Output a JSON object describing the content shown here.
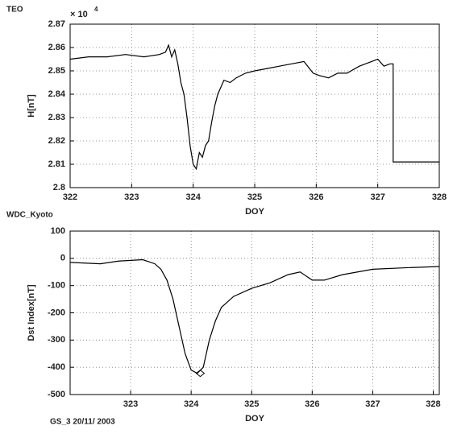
{
  "chart_data": [
    {
      "type": "line",
      "title": "TEO",
      "ylabel": "H[nT]",
      "xlabel": "DOY",
      "axis_multiplier": "× 10",
      "axis_exponent": "4",
      "xlim": [
        322,
        328
      ],
      "xticks": [
        322,
        323,
        324,
        325,
        326,
        327,
        328
      ],
      "ylim": [
        2.8,
        2.87
      ],
      "yticks": [
        2.8,
        2.81,
        2.82,
        2.83,
        2.84,
        2.85,
        2.86,
        2.87
      ],
      "grid": true,
      "color": "#000000",
      "x": [
        322,
        322.3,
        322.6,
        322.9,
        323.2,
        323.45,
        323.55,
        323.6,
        323.65,
        323.7,
        323.75,
        323.8,
        323.85,
        323.9,
        323.95,
        324.0,
        324.05,
        324.1,
        324.15,
        324.2,
        324.25,
        324.3,
        324.35,
        324.4,
        324.5,
        324.6,
        324.7,
        324.85,
        325.0,
        325.2,
        325.4,
        325.6,
        325.8,
        325.95,
        326.05,
        326.2,
        326.35,
        326.5,
        326.7,
        326.9,
        327.0,
        327.1,
        327.2,
        327.25,
        327.25,
        328
      ],
      "values": [
        2.855,
        2.856,
        2.856,
        2.857,
        2.856,
        2.857,
        2.858,
        2.861,
        2.856,
        2.859,
        2.853,
        2.845,
        2.84,
        2.83,
        2.818,
        2.81,
        2.808,
        2.815,
        2.813,
        2.818,
        2.82,
        2.828,
        2.835,
        2.84,
        2.846,
        2.845,
        2.847,
        2.849,
        2.85,
        2.851,
        2.852,
        2.853,
        2.854,
        2.849,
        2.848,
        2.847,
        2.849,
        2.849,
        2.852,
        2.854,
        2.855,
        2.852,
        2.853,
        2.853,
        2.811,
        2.811
      ]
    },
    {
      "type": "line",
      "title": "WDC_Kyoto",
      "ylabel": "Dst Index[nT]",
      "xlabel": "DOY",
      "footnote": "GS_3  20/11/ 2003",
      "xlim": [
        322,
        328.1
      ],
      "xticks": [
        323,
        324,
        325,
        326,
        327,
        328
      ],
      "ylim": [
        -500,
        100
      ],
      "yticks": [
        -500,
        -400,
        -300,
        -200,
        -100,
        0,
        100
      ],
      "grid": true,
      "color": "#000000",
      "x": [
        322,
        322.5,
        322.8,
        323.2,
        323.4,
        323.5,
        323.6,
        323.7,
        323.8,
        323.9,
        324.0,
        324.1,
        324.2,
        324.3,
        324.4,
        324.5,
        324.7,
        325.0,
        325.3,
        325.6,
        325.8,
        326.0,
        326.2,
        326.5,
        327.0,
        327.5,
        328.1
      ],
      "values": [
        -15,
        -20,
        -10,
        -5,
        -20,
        -40,
        -80,
        -150,
        -250,
        -350,
        -410,
        -422,
        -400,
        -300,
        -230,
        -180,
        -140,
        -110,
        -90,
        -60,
        -50,
        -80,
        -80,
        -60,
        -40,
        -35,
        -30
      ],
      "marker": {
        "x": 324.15,
        "y": -422
      }
    }
  ]
}
